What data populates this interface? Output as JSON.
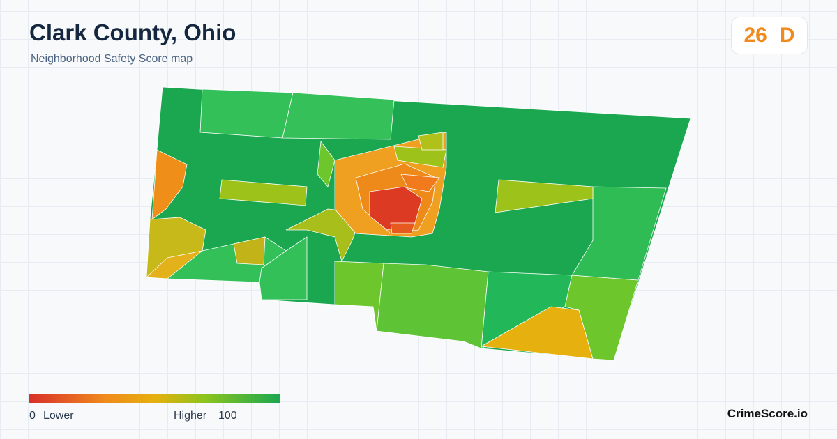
{
  "header": {
    "title": "Clark County, Ohio",
    "subtitle": "Neighborhood Safety Score map"
  },
  "score": {
    "value": 26,
    "grade": "D"
  },
  "legend": {
    "min": 0,
    "min_label": "Lower",
    "max_label": "Higher",
    "max": 100
  },
  "brand": "CrimeScore.io"
}
